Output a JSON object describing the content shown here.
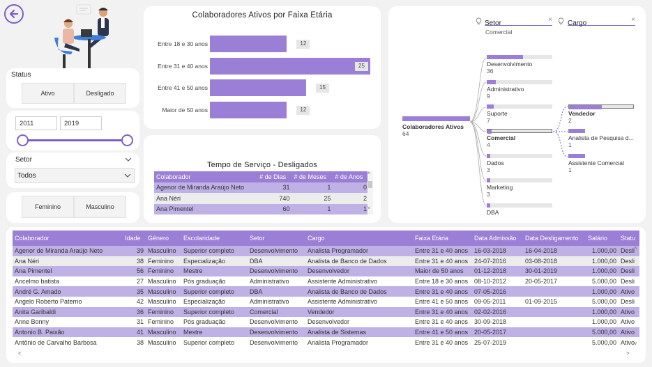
{
  "filters": {
    "status": {
      "title": "Status",
      "options": [
        "Ativo",
        "Desligado"
      ]
    },
    "year_slider": {
      "from": "2011",
      "to": "2019"
    },
    "setor": {
      "title": "Setor",
      "value": "Todos"
    },
    "gender": {
      "options": [
        "Feminino",
        "Masculino"
      ]
    }
  },
  "age_chart": {
    "title": "Colaboradores Ativos por Faixa Etária",
    "chart_data": {
      "type": "bar",
      "orientation": "horizontal",
      "categories": [
        "Entre 18 e 30 anos",
        "Entre 31 e 40 anos",
        "Entre 41 e 50 anos",
        "Maior de 50 anos"
      ],
      "values": [
        12,
        25,
        15,
        12
      ],
      "xlim": [
        0,
        25
      ],
      "color": "#9b7fd6"
    }
  },
  "service_table": {
    "title": "Tempo de Serviço - Desligados",
    "columns": [
      "Colaborador",
      "# de Dias",
      "# de Meses",
      "# de Anos"
    ],
    "rows": [
      [
        "Agenor de Miranda Araújo Neto",
        "31",
        "1",
        "0"
      ],
      [
        "Ana Néri",
        "740",
        "25",
        "2"
      ],
      [
        "Ana Pimentel",
        "60",
        "1",
        "1"
      ]
    ]
  },
  "tree": {
    "filter1": {
      "label": "Setor",
      "value": "Comercial"
    },
    "filter2": {
      "label": "Cargo",
      "value": ""
    },
    "root": {
      "name": "Colaboradores Ativos",
      "count": "64"
    },
    "level1": [
      {
        "name": "Desenvolvimento",
        "count": "36",
        "frac": 0.56
      },
      {
        "name": "Administrativo",
        "count": "9",
        "frac": 0.14
      },
      {
        "name": "Suporte",
        "count": "7",
        "frac": 0.11
      },
      {
        "name": "Comercial",
        "count": "4",
        "frac": 0.06
      },
      {
        "name": "Dados",
        "count": "3",
        "frac": 0.05
      },
      {
        "name": "Marketing",
        "count": "3",
        "frac": 0.05
      },
      {
        "name": "DBA",
        "count": "",
        "frac": 0.03
      }
    ],
    "level2": [
      {
        "name": "Vendedor",
        "count": "2",
        "frac": 0.5
      },
      {
        "name": "Analista de Pesquisa d...",
        "count": "1",
        "frac": 0.25
      },
      {
        "name": "Assistente Comercial",
        "count": "1",
        "frac": 0.25
      }
    ]
  },
  "main_table": {
    "columns": [
      "Colaborador",
      "Idade",
      "Gênero",
      "Escolaridade",
      "Setor",
      "Cargo",
      "Faixa Etária",
      "Data Admissão",
      "Data Desligamento",
      "Salário",
      "Statu"
    ],
    "rows": [
      [
        "Agenor de Miranda Araújo Neto",
        "39",
        "Masculino",
        "Superior completo",
        "Desenvolvimento",
        "Analista Programador",
        "Entre 31 e 40 anos",
        "16-03-2018",
        "16-04-2018",
        "1.000,00",
        "Desli"
      ],
      [
        "Ana Néri",
        "38",
        "Feminino",
        "Especialização",
        "DBA",
        "Analista de Banco de Dados",
        "Entre 31 e 40 anos",
        "24-07-2016",
        "03-08-2018",
        "1.000,00",
        "Desli"
      ],
      [
        "Ana Pimentel",
        "56",
        "Feminino",
        "Mestre",
        "Desenvolvimento",
        "Desenvolvedor",
        "Maior de 50 anos",
        "01-12-2018",
        "30-01-2019",
        "1.000,00",
        "Desli"
      ],
      [
        "Ancelmo batista",
        "27",
        "Masculino",
        "Pós graduação",
        "Administrativo",
        "Assistente Administrativo",
        "Entre 18 e 30 anos",
        "08-10-2012",
        "20-05-2017",
        "5.000,00",
        "Desli"
      ],
      [
        "André G. Amado",
        "35",
        "Masculino",
        "Superior completo",
        "DBA",
        "Analista de Banco de Dados",
        "Entre 31 e 40 anos",
        "07-05-2016",
        "",
        "1.000,00",
        "Ativo"
      ],
      [
        "Angelo Roberto Paterno",
        "42",
        "Masculino",
        "Especialização",
        "Administrativo",
        "Assistente Administrativo",
        "Entre 41 e 50 anos",
        "09-05-2011",
        "01-09-2015",
        "5.000,00",
        "Desli"
      ],
      [
        "Anita Garibaldi",
        "36",
        "Feminino",
        "Superior completo",
        "Comercial",
        "Vendedor",
        "Entre 31 e 40 anos",
        "02-02-2016",
        "",
        "1.000,00",
        "Ativo"
      ],
      [
        "Anne Bonny",
        "31",
        "Feminino",
        "Pós graduação",
        "Desenvolvimento",
        "Desenvolvedor",
        "Entre 31 e 40 anos",
        "30-09-2018",
        "",
        "1.000,00",
        "Ativo"
      ],
      [
        "Antonio B. Paixão",
        "41",
        "Masculino",
        "Mestre",
        "Desenvolvimento",
        "Analista de Sistemas",
        "Entre 41 e 50 anos",
        "20-05-2017",
        "",
        "5.000,00",
        "Ativo"
      ],
      [
        "Antônio de Carvalho Barbosa",
        "38",
        "Masculino",
        "Superior completo",
        "Desenvolvimento",
        "Analista Programador",
        "Entre 31 e 40 anos",
        "25-07-2019",
        "",
        "5.000,00",
        "Ativo"
      ]
    ]
  },
  "colors": {
    "accent": "#9b7fd6",
    "accent_light": "#bfb0e6",
    "back_button": "#7d5fc4"
  }
}
